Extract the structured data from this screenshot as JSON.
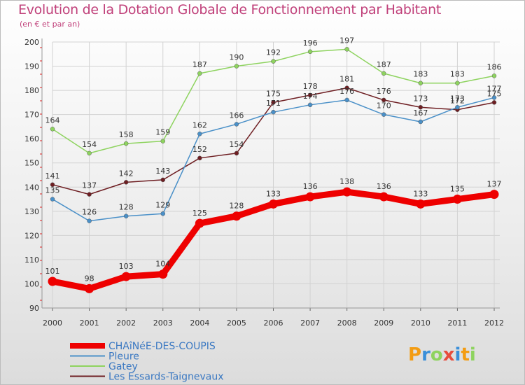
{
  "title": "Evolution de la Dotation Globale de Fonctionnement par Habitant",
  "subtitle": "(en € et par an)",
  "logo_text": "Proxiti",
  "chart_data": {
    "type": "line",
    "categories": [
      "2000",
      "2001",
      "2002",
      "2003",
      "2004",
      "2005",
      "2006",
      "2007",
      "2008",
      "2009",
      "2010",
      "2011",
      "2012"
    ],
    "ylim": [
      90,
      200
    ],
    "yticks": [
      90,
      100,
      110,
      120,
      130,
      140,
      150,
      160,
      170,
      180,
      190,
      200
    ],
    "grid": true,
    "series": [
      {
        "name": "Les Essards-Taignevaux",
        "color": "#6e1e22",
        "values": [
          141,
          137,
          142,
          143,
          152,
          154,
          175,
          178,
          181,
          176,
          173,
          172,
          175
        ]
      },
      {
        "name": "Gatey",
        "color": "#8ed35f",
        "values": [
          164,
          154,
          158,
          159,
          187,
          190,
          192,
          196,
          197,
          187,
          183,
          183,
          186
        ]
      },
      {
        "name": "Pleure",
        "color": "#4a90c8",
        "values": [
          135,
          126,
          128,
          129,
          162,
          166,
          171,
          174,
          176,
          170,
          167,
          173,
          177
        ]
      },
      {
        "name": "CHAîNéE-DES-COUPIS",
        "color": "#ee0000",
        "values": [
          101,
          98,
          103,
          104,
          125,
          128,
          133,
          136,
          138,
          136,
          133,
          135,
          137
        ]
      }
    ],
    "legend": [
      "CHAîNéE-DES-COUPIS",
      "Pleure",
      "Gatey",
      "Les Essards-Taignevaux"
    ]
  }
}
